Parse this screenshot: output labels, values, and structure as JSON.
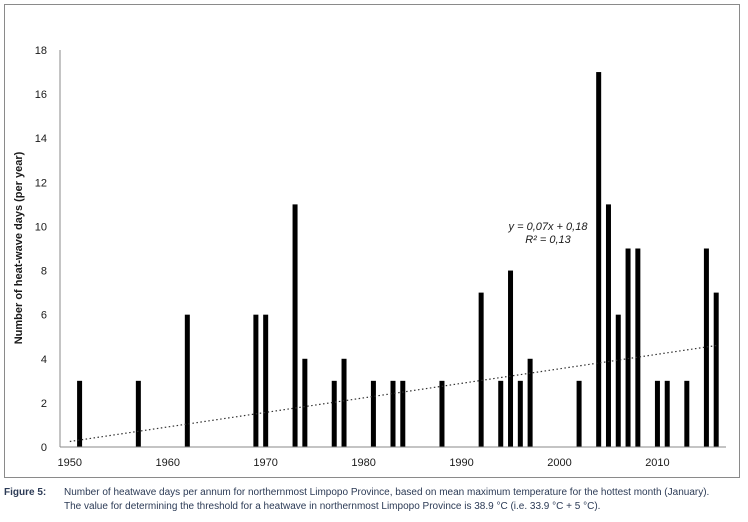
{
  "chart_data": {
    "type": "bar",
    "ylabel": "Number of heat-wave days (per year)",
    "xlabel": "",
    "ylim": [
      0,
      18
    ],
    "yticks": [
      0,
      2,
      4,
      6,
      8,
      10,
      12,
      14,
      16,
      18
    ],
    "xlim": [
      1949,
      2017
    ],
    "xticks": [
      1950,
      1960,
      1970,
      1980,
      1990,
      2000,
      2010
    ],
    "x": [
      1951,
      1957,
      1962,
      1969,
      1970,
      1973,
      1974,
      1977,
      1978,
      1981,
      1983,
      1984,
      1988,
      1992,
      1994,
      1995,
      1996,
      1997,
      2002,
      2004,
      2005,
      2006,
      2007,
      2008,
      2010,
      2011,
      2013,
      2015,
      2016
    ],
    "values": [
      3,
      3,
      6,
      6,
      6,
      11,
      4,
      3,
      4,
      3,
      3,
      3,
      3,
      7,
      3,
      8,
      3,
      4,
      3,
      17,
      11,
      6,
      9,
      9,
      3,
      3,
      3,
      9,
      7
    ],
    "bar_color": "#000000",
    "grid": false,
    "trendline": {
      "style": "dotted",
      "start": [
        1950,
        0.25
      ],
      "end": [
        2016,
        4.6
      ],
      "equation": "y = 0,07x + 0,18",
      "r_squared": "R² = 0,13"
    }
  },
  "caption": {
    "label": "Figure 5:",
    "line1": "Number of heatwave days per annum for northernmost Limpopo Province, based on mean maximum temperature for the hottest month (January).",
    "line2": "The value for determining the threshold for a heatwave in northernmost Limpopo Province is 38.9 °C (i.e. 33.9 °C + 5 °C)."
  }
}
